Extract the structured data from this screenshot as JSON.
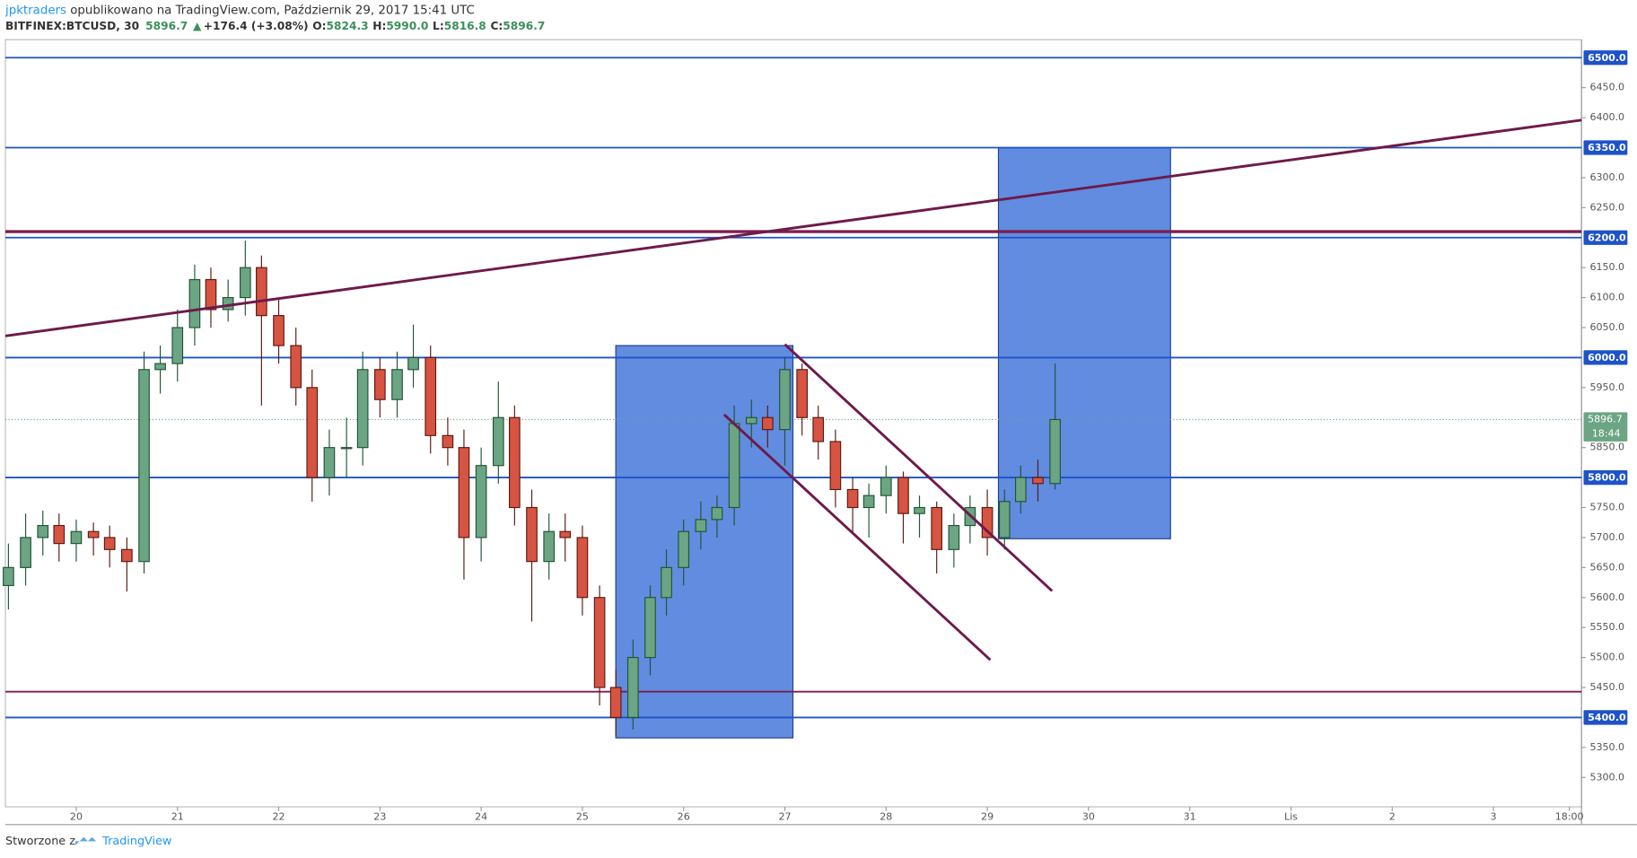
{
  "chart_data": {
    "type": "candlestick",
    "header": {
      "author": "jpktraders",
      "published": " opublikowano na TradingView.com, Październik 29, 2017 15:41 UTC",
      "symbol": "BITFINEX:BTCUSD, 30",
      "last": "5896.7",
      "change": "+176.4 (+3.08%)",
      "ohlc": [
        [
          "O:",
          "5824.3"
        ],
        [
          "H:",
          "5990.0"
        ],
        [
          "L:",
          "5816.8"
        ],
        [
          "C:",
          "5896.7"
        ]
      ]
    },
    "footer": {
      "text": "Stworzone z",
      "brand": "TradingView"
    },
    "x": [
      19.33,
      19.5,
      19.67,
      19.83,
      20,
      20.17,
      20.33,
      20.5,
      20.67,
      20.83,
      21,
      21.17,
      21.33,
      21.5,
      21.67,
      21.83,
      22,
      22.17,
      22.33,
      22.5,
      22.67,
      22.83,
      23,
      23.17,
      23.33,
      23.5,
      23.67,
      23.83,
      24,
      24.17,
      24.33,
      24.5,
      24.67,
      24.83,
      25,
      25.17,
      25.33,
      25.5,
      25.67,
      25.83,
      26,
      26.17,
      26.33,
      26.5,
      26.67,
      26.83,
      27,
      27.17,
      27.33,
      27.5,
      27.67,
      27.83,
      28,
      28.17,
      28.33,
      28.5,
      28.67,
      28.83,
      29,
      29.17,
      29.33,
      29.5,
      29.67
    ],
    "open": [
      5620,
      5650,
      5700,
      5720,
      5690,
      5710,
      5700,
      5680,
      5660,
      5980,
      5990,
      6050,
      6130,
      6080,
      6100,
      6150,
      6070,
      6020,
      5950,
      5800,
      5850,
      5850,
      5980,
      5930,
      5980,
      6000,
      5870,
      5850,
      5700,
      5820,
      5900,
      5750,
      5660,
      5710,
      5700,
      5600,
      5450,
      5400,
      5500,
      5600,
      5650,
      5710,
      5730,
      5750,
      5890,
      5900,
      5880,
      5980,
      5900,
      5860,
      5780,
      5750,
      5770,
      5800,
      5740,
      5750,
      5680,
      5720,
      5750,
      5700,
      5760,
      5800,
      5790
    ],
    "high": [
      5690,
      5740,
      5745,
      5740,
      5730,
      5725,
      5720,
      5700,
      6010,
      6020,
      6080,
      6155,
      6150,
      6130,
      6195,
      6170,
      6100,
      6050,
      5980,
      5880,
      5900,
      6010,
      6000,
      6010,
      6055,
      6020,
      5900,
      5880,
      5850,
      5960,
      5920,
      5780,
      5740,
      5740,
      5720,
      5620,
      5480,
      5530,
      5620,
      5680,
      5730,
      5760,
      5770,
      5920,
      5930,
      5920,
      6000,
      5990,
      5920,
      5880,
      5800,
      5790,
      5820,
      5810,
      5770,
      5760,
      5740,
      5770,
      5780,
      5780,
      5820,
      5830,
      5990
    ],
    "low": [
      5580,
      5620,
      5670,
      5660,
      5660,
      5670,
      5650,
      5610,
      5640,
      5940,
      5960,
      6020,
      6050,
      6060,
      6070,
      5920,
      5990,
      5920,
      5760,
      5770,
      5800,
      5820,
      5900,
      5900,
      5950,
      5840,
      5820,
      5630,
      5660,
      5790,
      5720,
      5560,
      5630,
      5660,
      5570,
      5420,
      5370,
      5380,
      5470,
      5570,
      5620,
      5680,
      5700,
      5720,
      5850,
      5850,
      5820,
      5870,
      5830,
      5750,
      5710,
      5700,
      5740,
      5690,
      5700,
      5640,
      5650,
      5690,
      5670,
      5680,
      5740,
      5760,
      5780
    ],
    "close": [
      5650,
      5700,
      5720,
      5690,
      5710,
      5700,
      5680,
      5660,
      5980,
      5990,
      6050,
      6130,
      6080,
      6100,
      6150,
      6070,
      6020,
      5950,
      5800,
      5850,
      5850,
      5980,
      5930,
      5980,
      6000,
      5870,
      5850,
      5700,
      5820,
      5900,
      5750,
      5660,
      5710,
      5700,
      5600,
      5450,
      5400,
      5500,
      5600,
      5650,
      5710,
      5730,
      5750,
      5890,
      5900,
      5880,
      5980,
      5900,
      5860,
      5780,
      5750,
      5770,
      5800,
      5740,
      5750,
      5680,
      5720,
      5750,
      5700,
      5760,
      5800,
      5790,
      5896.7
    ],
    "up_color": "#6ba583",
    "down_color": "#d75442",
    "up_border": "#225437",
    "down_border": "#5b1a13",
    "xlim": [
      19.3,
      34.87
    ],
    "ylim": [
      5251,
      6530
    ],
    "xticks": [
      20,
      21,
      22,
      23,
      24,
      25,
      26,
      27,
      28,
      29,
      30,
      31,
      {
        "value": 32,
        "label": "Lis"
      },
      {
        "value": 33,
        "label": "2"
      },
      {
        "value": 34,
        "label": "3"
      },
      {
        "value": 34.75,
        "label": "18:00"
      }
    ],
    "yticks": [
      {
        "value": 6450,
        "label": "6450.0"
      },
      {
        "value": 6400,
        "label": "6400.0"
      },
      {
        "value": 6300,
        "label": "6300.0"
      },
      {
        "value": 6250,
        "label": "6250.0"
      },
      {
        "value": 6150,
        "label": "6150.0"
      },
      {
        "value": 6100,
        "label": "6100.0"
      },
      {
        "value": 6050,
        "label": "6050.0"
      },
      {
        "value": 5950,
        "label": "5950.0"
      },
      {
        "value": 5850,
        "label": "5850.0"
      },
      {
        "value": 5750,
        "label": "5750.0"
      },
      {
        "value": 5700,
        "label": "5700.0"
      },
      {
        "value": 5650,
        "label": "5650.0"
      },
      {
        "value": 5600,
        "label": "5600.0"
      },
      {
        "value": 5550,
        "label": "5550.0"
      },
      {
        "value": 5500,
        "label": "5500.0"
      },
      {
        "value": 5450,
        "label": "5450.0"
      },
      {
        "value": 5350,
        "label": "5350.0"
      },
      {
        "value": 5300,
        "label": "5300.0"
      }
    ],
    "hlines": [
      {
        "value": 6500,
        "label": "6500.0",
        "color": "#1e53c8"
      },
      {
        "value": 6350,
        "label": "6350.0",
        "color": "#1e53c8"
      },
      {
        "value": 6200,
        "label": "6200.0",
        "color": "#1e53c8"
      },
      {
        "value": 6000,
        "label": "6000.0",
        "color": "#1e53c8"
      },
      {
        "value": 5800,
        "label": "5800.0",
        "color": "#1e53c8"
      },
      {
        "value": 5400,
        "label": "5400.0",
        "color": "#1e53c8"
      },
      {
        "value": 6210,
        "color": "#7b1f4e"
      },
      {
        "value": 5443,
        "color": "#7b1f4e"
      }
    ],
    "last_price": {
      "value": 5896.7,
      "countdown": "18:44",
      "color": "#6ba583"
    },
    "trendlines": [
      {
        "x": [
          19.3,
          34.87
        ],
        "y": [
          6036,
          6396
        ],
        "color": "#6e1a4a"
      },
      {
        "x": [
          27.0,
          29.64
        ],
        "y": [
          6022,
          5611
        ],
        "color": "#6e1a4a"
      },
      {
        "x": [
          26.4,
          29.03
        ],
        "y": [
          5905,
          5496
        ],
        "color": "#6e1a4a"
      }
    ],
    "boxes": [
      {
        "x": [
          25.33,
          27.08
        ],
        "y": [
          5366,
          6020
        ],
        "color": "#3a6fd8"
      },
      {
        "x": [
          29.11,
          30.81
        ],
        "y": [
          5698,
          6350
        ],
        "color": "#3a6fd8"
      }
    ]
  }
}
